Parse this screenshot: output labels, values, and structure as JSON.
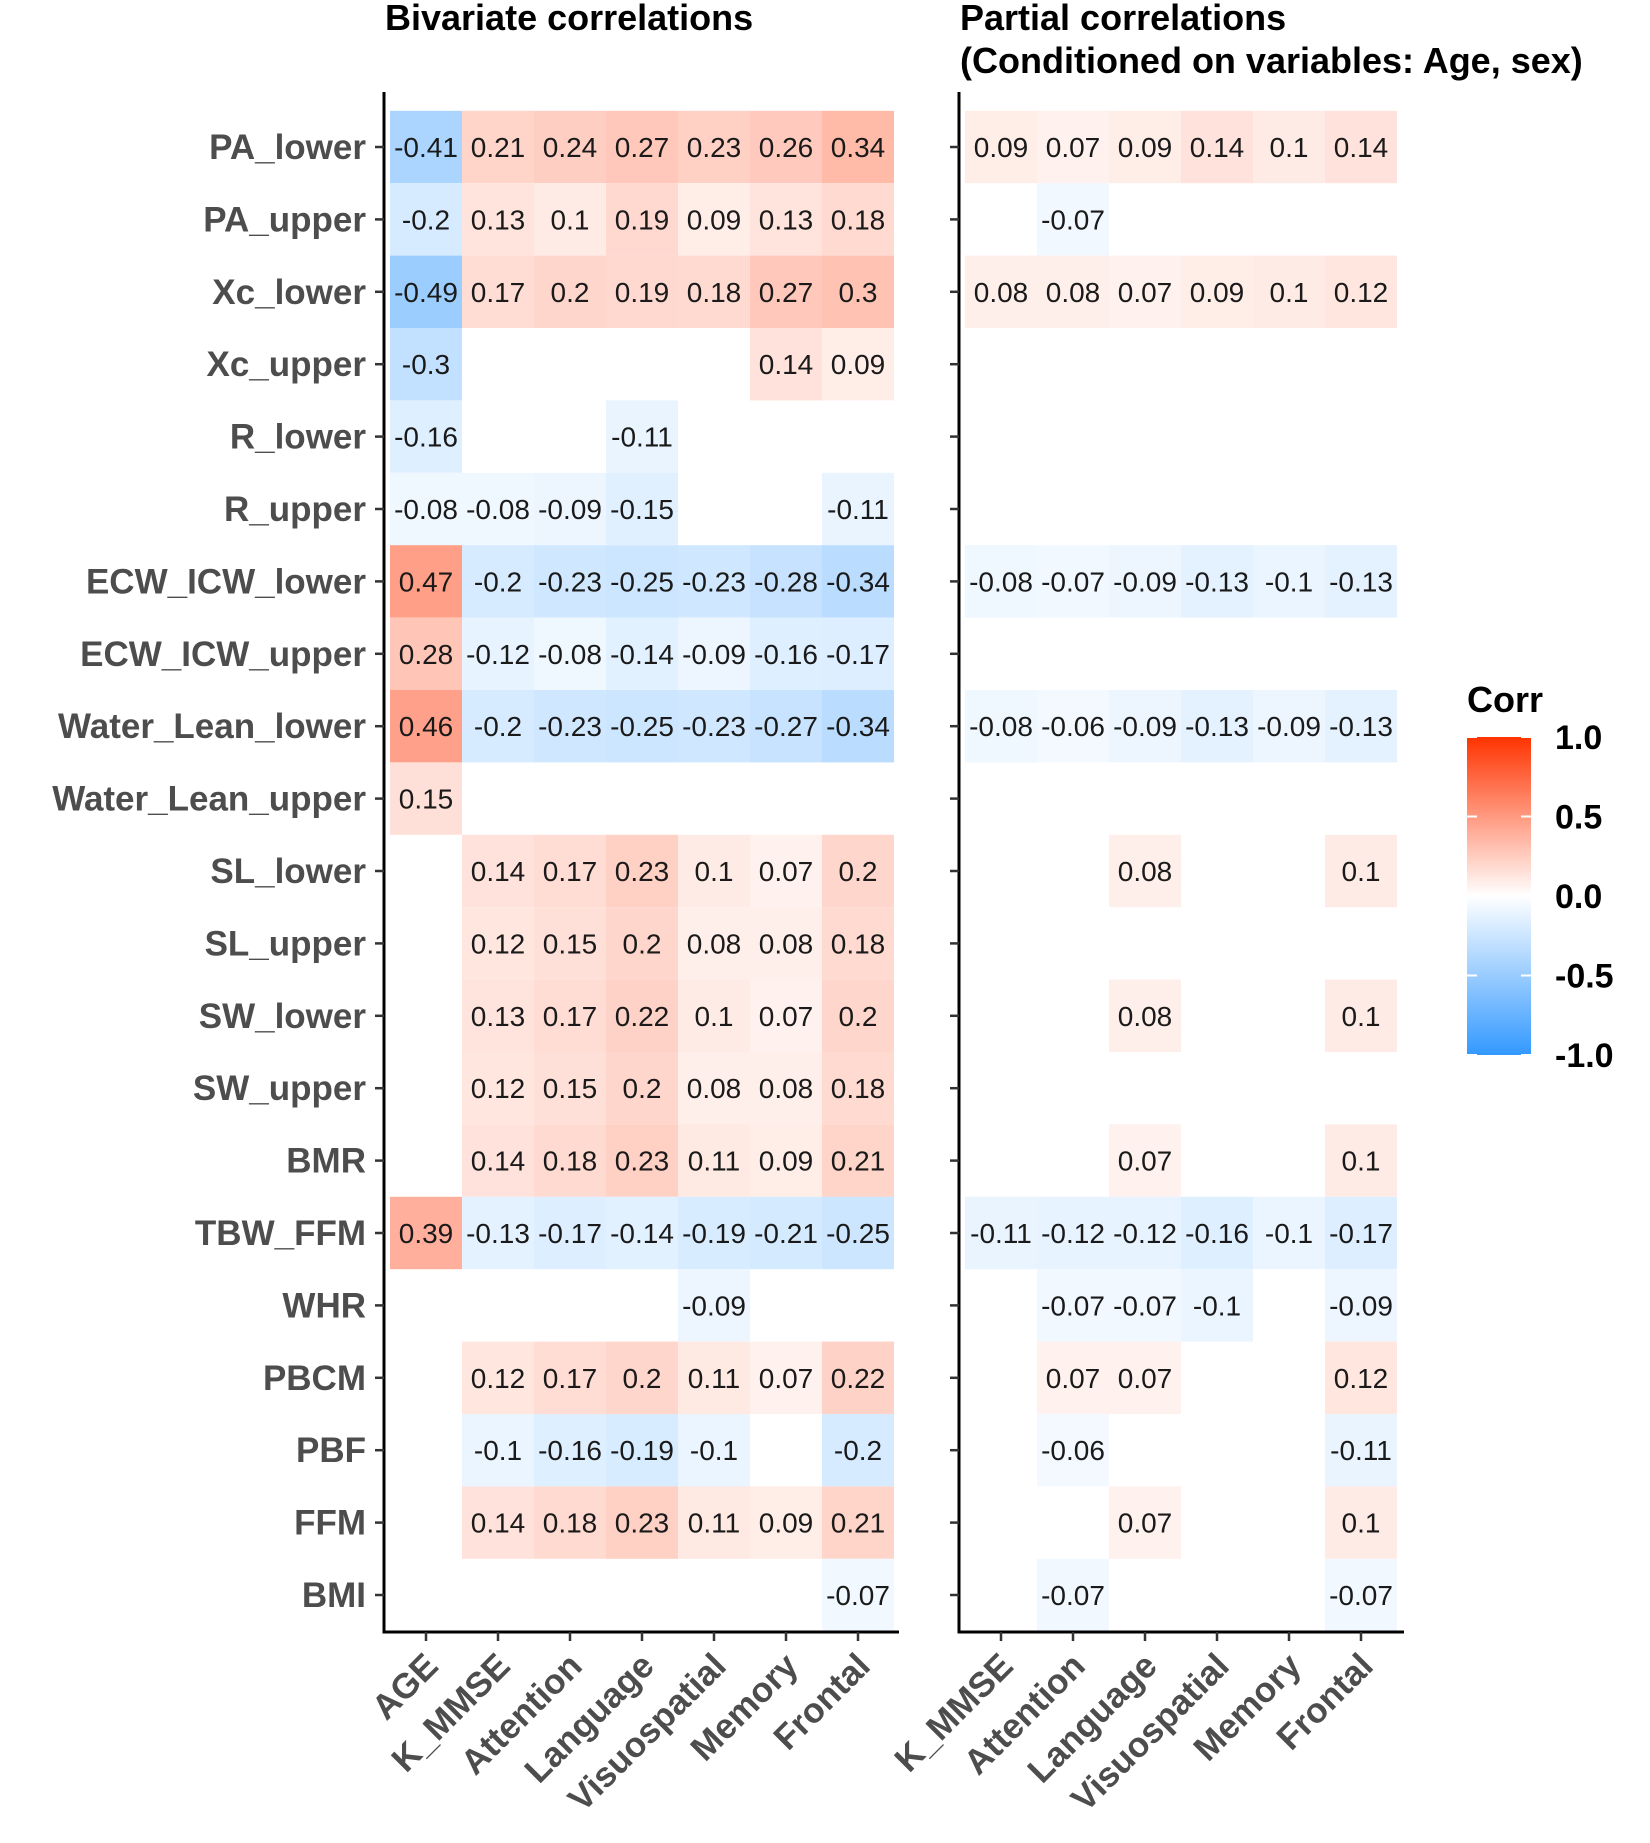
{
  "chart_data": {
    "type": "heatmap",
    "rows": [
      "PA_lower",
      "PA_upper",
      "Xc_lower",
      "Xc_upper",
      "R_lower",
      "R_upper",
      "ECW_ICW_lower",
      "ECW_ICW_upper",
      "Water_Lean_lower",
      "Water_Lean_upper",
      "SL_lower",
      "SL_upper",
      "SW_lower",
      "SW_upper",
      "BMR",
      "TBW_FFM",
      "WHR",
      "PBCM",
      "PBF",
      "FFM",
      "BMI"
    ],
    "panels": [
      {
        "title": "Bivariate correlations",
        "columns": [
          "AGE",
          "K_MMSE",
          "Attention",
          "Language",
          "Visuospatial",
          "Memory",
          "Frontal"
        ],
        "values": [
          [
            -0.41,
            0.21,
            0.24,
            0.27,
            0.23,
            0.26,
            0.34
          ],
          [
            -0.2,
            0.13,
            0.1,
            0.19,
            0.09,
            0.13,
            0.18
          ],
          [
            -0.49,
            0.17,
            0.2,
            0.19,
            0.18,
            0.27,
            0.3
          ],
          [
            -0.3,
            null,
            null,
            null,
            null,
            0.14,
            0.09
          ],
          [
            -0.16,
            null,
            null,
            -0.11,
            null,
            null,
            null
          ],
          [
            -0.08,
            -0.08,
            -0.09,
            -0.15,
            null,
            null,
            -0.11
          ],
          [
            0.47,
            -0.2,
            -0.23,
            -0.25,
            -0.23,
            -0.28,
            -0.34
          ],
          [
            0.28,
            -0.12,
            -0.08,
            -0.14,
            -0.09,
            -0.16,
            -0.17
          ],
          [
            0.46,
            -0.2,
            -0.23,
            -0.25,
            -0.23,
            -0.27,
            -0.34
          ],
          [
            0.15,
            null,
            null,
            null,
            null,
            null,
            null
          ],
          [
            null,
            0.14,
            0.17,
            0.23,
            0.1,
            0.07,
            0.2
          ],
          [
            null,
            0.12,
            0.15,
            0.2,
            0.08,
            0.08,
            0.18
          ],
          [
            null,
            0.13,
            0.17,
            0.22,
            0.1,
            0.07,
            0.2
          ],
          [
            null,
            0.12,
            0.15,
            0.2,
            0.08,
            0.08,
            0.18
          ],
          [
            null,
            0.14,
            0.18,
            0.23,
            0.11,
            0.09,
            0.21
          ],
          [
            0.39,
            -0.13,
            -0.17,
            -0.14,
            -0.19,
            -0.21,
            -0.25
          ],
          [
            null,
            null,
            null,
            null,
            -0.09,
            null,
            null
          ],
          [
            null,
            0.12,
            0.17,
            0.2,
            0.11,
            0.07,
            0.22
          ],
          [
            null,
            -0.1,
            -0.16,
            -0.19,
            -0.1,
            null,
            -0.2
          ],
          [
            null,
            0.14,
            0.18,
            0.23,
            0.11,
            0.09,
            0.21
          ],
          [
            null,
            null,
            null,
            null,
            null,
            null,
            -0.07
          ]
        ]
      },
      {
        "title_lines": [
          "Partial correlations",
          "(Conditioned on variables: Age, sex)"
        ],
        "columns": [
          "K_MMSE",
          "Attention",
          "Language",
          "Visuospatial",
          "Memory",
          "Frontal"
        ],
        "values": [
          [
            0.09,
            0.07,
            0.09,
            0.14,
            0.1,
            0.14
          ],
          [
            null,
            -0.07,
            null,
            null,
            null,
            null
          ],
          [
            0.08,
            0.08,
            0.07,
            0.09,
            0.1,
            0.12
          ],
          [
            null,
            null,
            null,
            null,
            null,
            null
          ],
          [
            null,
            null,
            null,
            null,
            null,
            null
          ],
          [
            null,
            null,
            null,
            null,
            null,
            null
          ],
          [
            -0.08,
            -0.07,
            -0.09,
            -0.13,
            -0.1,
            -0.13
          ],
          [
            null,
            null,
            null,
            null,
            null,
            null
          ],
          [
            -0.08,
            -0.06,
            -0.09,
            -0.13,
            -0.09,
            -0.13
          ],
          [
            null,
            null,
            null,
            null,
            null,
            null
          ],
          [
            null,
            null,
            0.08,
            null,
            null,
            0.1
          ],
          [
            null,
            null,
            null,
            null,
            null,
            null
          ],
          [
            null,
            null,
            0.08,
            null,
            null,
            0.1
          ],
          [
            null,
            null,
            null,
            null,
            null,
            null
          ],
          [
            null,
            null,
            0.07,
            null,
            null,
            0.1
          ],
          [
            -0.11,
            -0.12,
            -0.12,
            -0.16,
            -0.1,
            -0.17
          ],
          [
            null,
            -0.07,
            -0.07,
            -0.1,
            null,
            -0.09
          ],
          [
            null,
            0.07,
            0.07,
            null,
            null,
            0.12
          ],
          [
            null,
            -0.06,
            null,
            null,
            null,
            -0.11
          ],
          [
            null,
            null,
            0.07,
            null,
            null,
            0.1
          ],
          [
            null,
            -0.07,
            null,
            null,
            null,
            -0.07
          ]
        ]
      }
    ],
    "legend": {
      "title": "Corr",
      "ticks": [
        "1.0",
        "0.5",
        "0.0",
        "-0.5",
        "-1.0"
      ],
      "range": [
        -1,
        1
      ],
      "colors": {
        "low": "#3399ff",
        "mid": "#ffffff",
        "high": "#ff3300"
      }
    }
  }
}
